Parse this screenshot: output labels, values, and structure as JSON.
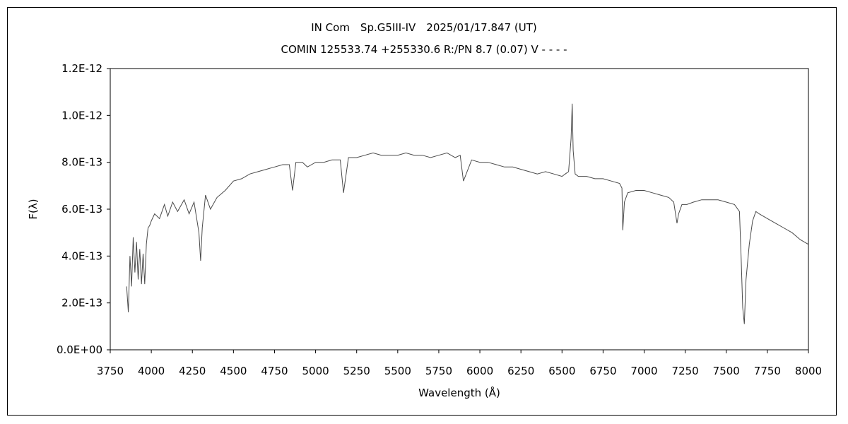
{
  "chart_data": {
    "type": "line",
    "title_line1": "IN Com　Sp.G5III-IV　2025/01/17.847 (UT)",
    "title_line2": "COMIN 125533.74 +255330.6 R:/PN 8.7 (0.07) V - - - -",
    "xlabel": "Wavelength (Å)",
    "ylabel": "F(λ)",
    "xlim": [
      3750,
      8000
    ],
    "ylim": [
      0,
      1.2e-12
    ],
    "xticks": [
      3750,
      4000,
      4250,
      4500,
      4750,
      5000,
      5250,
      5500,
      5750,
      6000,
      6250,
      6500,
      6750,
      7000,
      7250,
      7500,
      7750,
      8000
    ],
    "xtick_labels": [
      "3750",
      "4000",
      "4250",
      "4500",
      "4750",
      "5000",
      "5250",
      "5500",
      "5750",
      "6000",
      "6250",
      "6500",
      "6750",
      "7000",
      "7250",
      "7500",
      "7750",
      "8000"
    ],
    "yticks": [
      0,
      2e-13,
      4e-13,
      6e-13,
      8e-13,
      1e-12,
      1.2e-12
    ],
    "ytick_labels": [
      "0.0E+00",
      "2.0E-13",
      "4.0E-13",
      "6.0E-13",
      "8.0E-13",
      "1.0E-12",
      "1.2E-12"
    ],
    "grid": false,
    "legend": "none",
    "line_color": "#4a4a4a",
    "series": [
      {
        "x": [
          3850,
          3860,
          3870,
          3880,
          3890,
          3900,
          3910,
          3920,
          3930,
          3940,
          3950,
          3960,
          3970,
          3980,
          3990,
          4000,
          4020,
          4050,
          4080,
          4100,
          4130,
          4160,
          4200,
          4230,
          4260,
          4290,
          4300,
          4310,
          4330,
          4360,
          4400,
          4450,
          4500,
          4550,
          4600,
          4650,
          4700,
          4750,
          4800,
          4840,
          4860,
          4880,
          4920,
          4950,
          5000,
          5050,
          5100,
          5150,
          5170,
          5200,
          5250,
          5300,
          5350,
          5400,
          5450,
          5500,
          5550,
          5600,
          5650,
          5700,
          5750,
          5800,
          5850,
          5880,
          5900,
          5950,
          6000,
          6050,
          6100,
          6150,
          6200,
          6250,
          6300,
          6350,
          6400,
          6450,
          6500,
          6520,
          6540,
          6555,
          6562,
          6568,
          6580,
          6600,
          6650,
          6700,
          6750,
          6800,
          6850,
          6865,
          6870,
          6880,
          6900,
          6950,
          7000,
          7050,
          7100,
          7150,
          7180,
          7200,
          7210,
          7230,
          7260,
          7300,
          7350,
          7400,
          7450,
          7500,
          7550,
          7580,
          7590,
          7600,
          7610,
          7620,
          7640,
          7660,
          7680,
          7700,
          7750,
          7800,
          7850,
          7900,
          7950,
          8000
        ],
        "y": [
          2.7e-13,
          1.6e-13,
          4e-13,
          2.7e-13,
          4.8e-13,
          3.3e-13,
          4.6e-13,
          3e-13,
          4.3e-13,
          2.8e-13,
          4.1e-13,
          2.8e-13,
          4.5e-13,
          5.2e-13,
          5.3e-13,
          5.5e-13,
          5.8e-13,
          5.6e-13,
          6.2e-13,
          5.7e-13,
          6.3e-13,
          5.9e-13,
          6.4e-13,
          5.8e-13,
          6.3e-13,
          5e-13,
          3.8e-13,
          5.2e-13,
          6.6e-13,
          6e-13,
          6.5e-13,
          6.8e-13,
          7.2e-13,
          7.3e-13,
          7.5e-13,
          7.6e-13,
          7.7e-13,
          7.8e-13,
          7.9e-13,
          7.9e-13,
          6.8e-13,
          8e-13,
          8e-13,
          7.8e-13,
          8e-13,
          8e-13,
          8.1e-13,
          8.1e-13,
          6.7e-13,
          8.2e-13,
          8.2e-13,
          8.3e-13,
          8.4e-13,
          8.3e-13,
          8.3e-13,
          8.3e-13,
          8.4e-13,
          8.3e-13,
          8.3e-13,
          8.2e-13,
          8.3e-13,
          8.4e-13,
          8.2e-13,
          8.3e-13,
          7.2e-13,
          8.1e-13,
          8e-13,
          8e-13,
          7.9e-13,
          7.8e-13,
          7.8e-13,
          7.7e-13,
          7.6e-13,
          7.5e-13,
          7.6e-13,
          7.5e-13,
          7.4e-13,
          7.5e-13,
          7.6e-13,
          9e-13,
          1.05e-12,
          8.5e-13,
          7.5e-13,
          7.4e-13,
          7.4e-13,
          7.3e-13,
          7.3e-13,
          7.2e-13,
          7.1e-13,
          6.9e-13,
          5.1e-13,
          6.3e-13,
          6.7e-13,
          6.8e-13,
          6.8e-13,
          6.7e-13,
          6.6e-13,
          6.5e-13,
          6.3e-13,
          5.4e-13,
          5.8e-13,
          6.2e-13,
          6.2e-13,
          6.3e-13,
          6.4e-13,
          6.4e-13,
          6.4e-13,
          6.3e-13,
          6.2e-13,
          5.9e-13,
          4e-13,
          1.8e-13,
          1.1e-13,
          3e-13,
          4.5e-13,
          5.5e-13,
          5.9e-13,
          5.8e-13,
          5.6e-13,
          5.4e-13,
          5.2e-13,
          5e-13,
          4.7e-13,
          4.5e-13
        ]
      }
    ]
  }
}
